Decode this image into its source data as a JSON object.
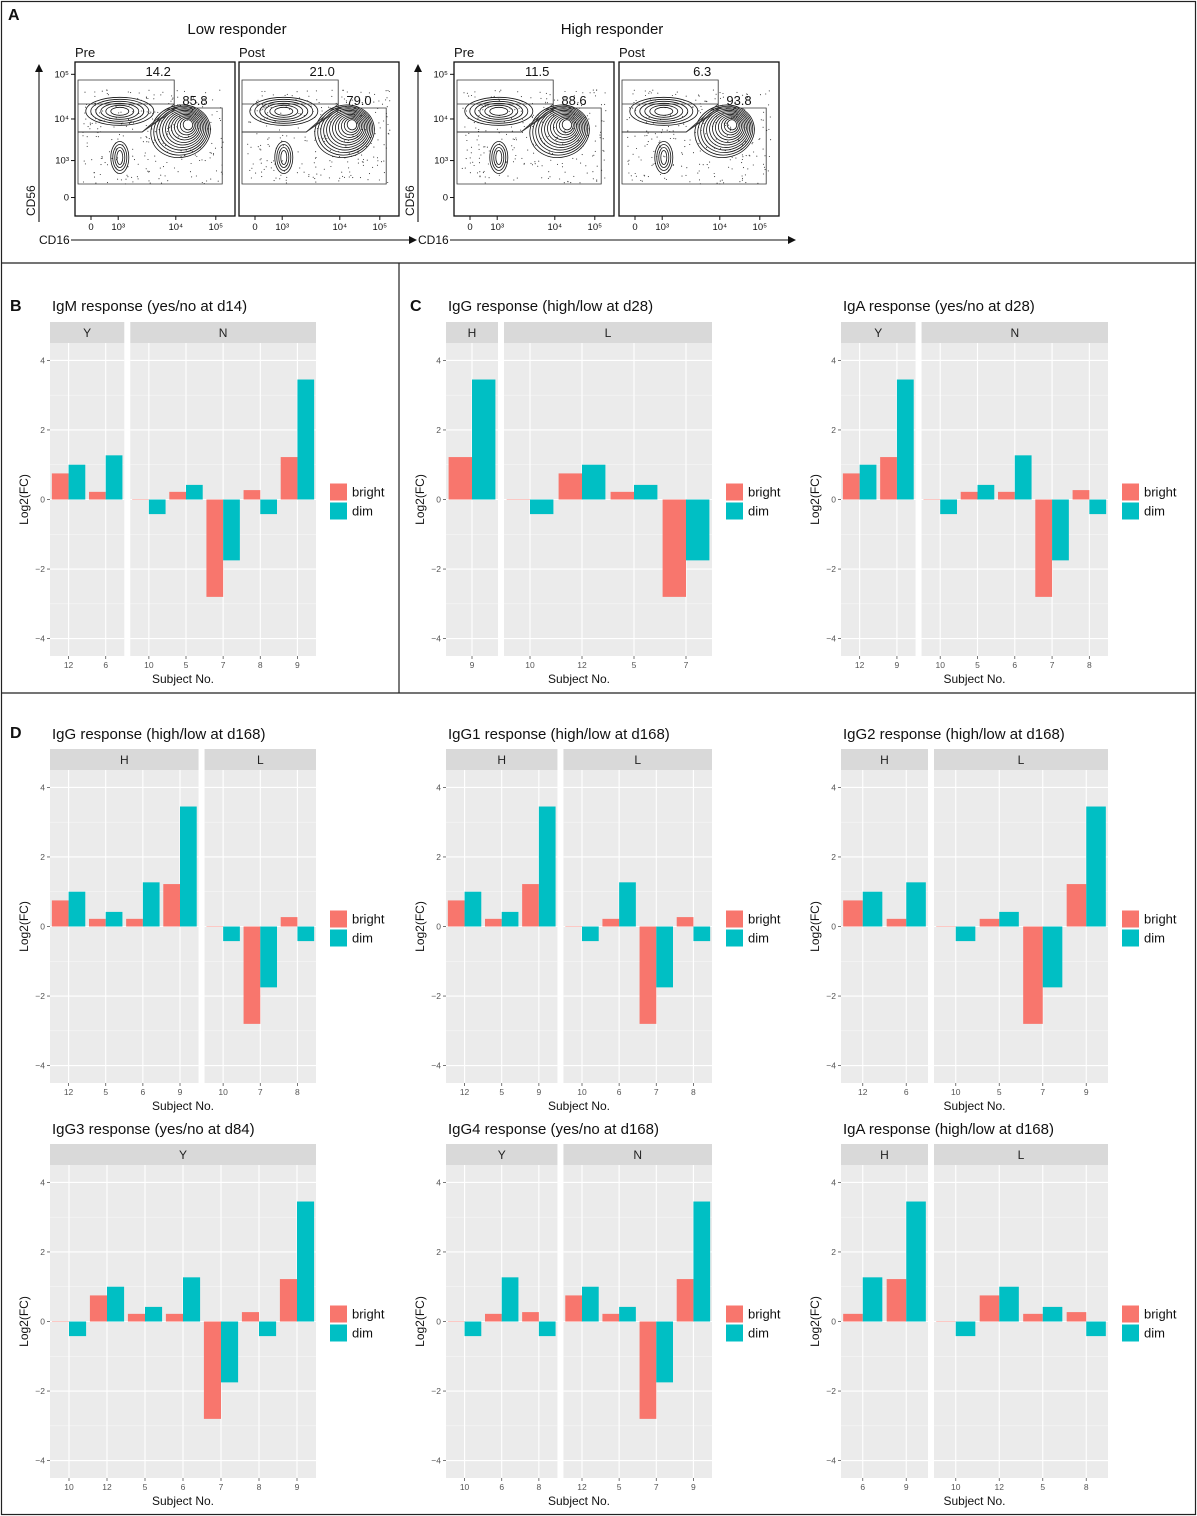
{
  "colors": {
    "bright": "#F8766D",
    "dim": "#00BFC4",
    "panel_bg": "#EBEBEB",
    "strip_bg": "#D9D9D9",
    "grid": "#FFFFFF"
  },
  "panel_labels": {
    "a": "A",
    "b": "B",
    "c": "C",
    "d": "D"
  },
  "flow": {
    "groups": [
      {
        "title": "Low responder",
        "plots": [
          {
            "label": "Pre",
            "bright_pct": "14.2",
            "dim_pct": "85.8"
          },
          {
            "label": "Post",
            "bright_pct": "21.0",
            "dim_pct": "79.0"
          }
        ]
      },
      {
        "title": "High responder",
        "plots": [
          {
            "label": "Pre",
            "bright_pct": "11.5",
            "dim_pct": "88.6"
          },
          {
            "label": "Post",
            "bright_pct": "6.3",
            "dim_pct": "93.8"
          }
        ]
      }
    ],
    "y_axis_label": "CD56",
    "x_axis_label": "CD16",
    "ticks": [
      "0",
      "10³",
      "10⁴",
      "10⁵"
    ]
  },
  "chart_data": [
    {
      "id": "igm_d14",
      "type": "bar",
      "title": "IgM response (yes/no at d14)",
      "xlabel": "Subject No.",
      "ylabel": "Log2(FC)",
      "ylim": [
        -4.5,
        4.5
      ],
      "yticks": [
        "4",
        "2",
        "0",
        "−2",
        "−4"
      ],
      "legend": [
        "bright",
        "dim"
      ],
      "facets": [
        {
          "label": "Y",
          "subjects": [
            "12",
            "6"
          ],
          "bright": [
            0.75,
            0.22
          ],
          "dim": [
            1.0,
            1.27
          ]
        },
        {
          "label": "N",
          "subjects": [
            "10",
            "5",
            "7",
            "8",
            "9"
          ],
          "bright": [
            0.0,
            0.22,
            -2.8,
            0.27,
            1.22
          ],
          "dim": [
            -0.42,
            0.42,
            -1.75,
            -0.42,
            3.45
          ]
        }
      ]
    },
    {
      "id": "igg_d28",
      "type": "bar",
      "title": "IgG response (high/low at d28)",
      "xlabel": "Subject No.",
      "ylabel": "Log2(FC)",
      "ylim": [
        -4.5,
        4.5
      ],
      "yticks": [
        "4",
        "2",
        "0",
        "−2",
        "−4"
      ],
      "legend": [
        "bright",
        "dim"
      ],
      "facets": [
        {
          "label": "H",
          "subjects": [
            "9"
          ],
          "bright": [
            1.22
          ],
          "dim": [
            3.45
          ]
        },
        {
          "label": "L",
          "subjects": [
            "10",
            "12",
            "5",
            "7"
          ],
          "bright": [
            0.0,
            0.75,
            0.22,
            -2.8
          ],
          "dim": [
            -0.42,
            1.0,
            0.42,
            -1.75
          ]
        }
      ]
    },
    {
      "id": "iga_d28",
      "type": "bar",
      "title": "IgA response (yes/no at d28)",
      "xlabel": "Subject No.",
      "ylabel": "Log2(FC)",
      "ylim": [
        -4.5,
        4.5
      ],
      "yticks": [
        "4",
        "2",
        "0",
        "−2",
        "−4"
      ],
      "legend": [
        "bright",
        "dim"
      ],
      "facets": [
        {
          "label": "Y",
          "subjects": [
            "12",
            "9"
          ],
          "bright": [
            0.75,
            1.22
          ],
          "dim": [
            1.0,
            3.45
          ]
        },
        {
          "label": "N",
          "subjects": [
            "10",
            "5",
            "6",
            "7",
            "8"
          ],
          "bright": [
            0.0,
            0.22,
            0.22,
            -2.8,
            0.27
          ],
          "dim": [
            -0.42,
            0.42,
            1.27,
            -1.75,
            -0.42
          ]
        }
      ]
    },
    {
      "id": "igg_d168",
      "type": "bar",
      "title": "IgG response (high/low at d168)",
      "xlabel": "Subject No.",
      "ylabel": "Log2(FC)",
      "ylim": [
        -4.5,
        4.5
      ],
      "yticks": [
        "4",
        "2",
        "0",
        "−2",
        "−4"
      ],
      "legend": [
        "bright",
        "dim"
      ],
      "facets": [
        {
          "label": "H",
          "subjects": [
            "12",
            "5",
            "6",
            "9"
          ],
          "bright": [
            0.75,
            0.22,
            0.22,
            1.22
          ],
          "dim": [
            1.0,
            0.42,
            1.27,
            3.45
          ]
        },
        {
          "label": "L",
          "subjects": [
            "10",
            "7",
            "8"
          ],
          "bright": [
            0.0,
            -2.8,
            0.27
          ],
          "dim": [
            -0.42,
            -1.75,
            -0.42
          ]
        }
      ]
    },
    {
      "id": "igg1_d168",
      "type": "bar",
      "title": "IgG1 response (high/low at d168)",
      "xlabel": "Subject No.",
      "ylabel": "Log2(FC)",
      "ylim": [
        -4.5,
        4.5
      ],
      "yticks": [
        "4",
        "2",
        "0",
        "−2",
        "−4"
      ],
      "legend": [
        "bright",
        "dim"
      ],
      "facets": [
        {
          "label": "H",
          "subjects": [
            "12",
            "5",
            "9"
          ],
          "bright": [
            0.75,
            0.22,
            1.22
          ],
          "dim": [
            1.0,
            0.42,
            3.45
          ]
        },
        {
          "label": "L",
          "subjects": [
            "10",
            "6",
            "7",
            "8"
          ],
          "bright": [
            0.0,
            0.22,
            -2.8,
            0.27
          ],
          "dim": [
            -0.42,
            1.27,
            -1.75,
            -0.42
          ]
        }
      ]
    },
    {
      "id": "igg2_d168",
      "type": "bar",
      "title": "IgG2 response (high/low at d168)",
      "xlabel": "Subject No.",
      "ylabel": "Log2(FC)",
      "ylim": [
        -4.5,
        4.5
      ],
      "yticks": [
        "4",
        "2",
        "0",
        "−2",
        "−4"
      ],
      "legend": [
        "bright",
        "dim"
      ],
      "facets": [
        {
          "label": "H",
          "subjects": [
            "12",
            "6"
          ],
          "bright": [
            0.75,
            0.22
          ],
          "dim": [
            1.0,
            1.27
          ]
        },
        {
          "label": "L",
          "subjects": [
            "10",
            "5",
            "7",
            "9"
          ],
          "bright": [
            0.0,
            0.22,
            -2.8,
            1.22
          ],
          "dim": [
            -0.42,
            0.42,
            -1.75,
            3.45
          ]
        }
      ]
    },
    {
      "id": "igg3_d84",
      "type": "bar",
      "title": "IgG3 response (yes/no at d84)",
      "xlabel": "Subject No.",
      "ylabel": "Log2(FC)",
      "ylim": [
        -4.5,
        4.5
      ],
      "yticks": [
        "4",
        "2",
        "0",
        "−2",
        "−4"
      ],
      "legend": [
        "bright",
        "dim"
      ],
      "facets": [
        {
          "label": "Y",
          "subjects": [
            "10",
            "12",
            "5",
            "6",
            "7",
            "8",
            "9"
          ],
          "bright": [
            0.0,
            0.75,
            0.22,
            0.22,
            -2.8,
            0.27,
            1.22
          ],
          "dim": [
            -0.42,
            1.0,
            0.42,
            1.27,
            -1.75,
            -0.42,
            3.45
          ]
        }
      ]
    },
    {
      "id": "igg4_d168",
      "type": "bar",
      "title": "IgG4 response (yes/no at d168)",
      "xlabel": "Subject No.",
      "ylabel": "Log2(FC)",
      "ylim": [
        -4.5,
        4.5
      ],
      "yticks": [
        "4",
        "2",
        "0",
        "−2",
        "−4"
      ],
      "legend": [
        "bright",
        "dim"
      ],
      "facets": [
        {
          "label": "Y",
          "subjects": [
            "10",
            "6",
            "8"
          ],
          "bright": [
            0.0,
            0.22,
            0.27
          ],
          "dim": [
            -0.42,
            1.27,
            -0.42
          ]
        },
        {
          "label": "N",
          "subjects": [
            "12",
            "5",
            "7",
            "9"
          ],
          "bright": [
            0.75,
            0.22,
            -2.8,
            1.22
          ],
          "dim": [
            1.0,
            0.42,
            -1.75,
            3.45
          ]
        }
      ]
    },
    {
      "id": "iga_d168",
      "type": "bar",
      "title": "IgA response (high/low at d168)",
      "xlabel": "Subject No.",
      "ylabel": "Log2(FC)",
      "ylim": [
        -4.5,
        4.5
      ],
      "yticks": [
        "4",
        "2",
        "0",
        "−2",
        "−4"
      ],
      "legend": [
        "bright",
        "dim"
      ],
      "facets": [
        {
          "label": "H",
          "subjects": [
            "6",
            "9"
          ],
          "bright": [
            0.22,
            1.22
          ],
          "dim": [
            1.27,
            3.45
          ]
        },
        {
          "label": "L",
          "subjects": [
            "10",
            "12",
            "5",
            "8"
          ],
          "bright": [
            0.0,
            0.75,
            0.22,
            0.27
          ],
          "dim": [
            -0.42,
            1.0,
            0.42,
            -0.42
          ]
        }
      ]
    }
  ]
}
